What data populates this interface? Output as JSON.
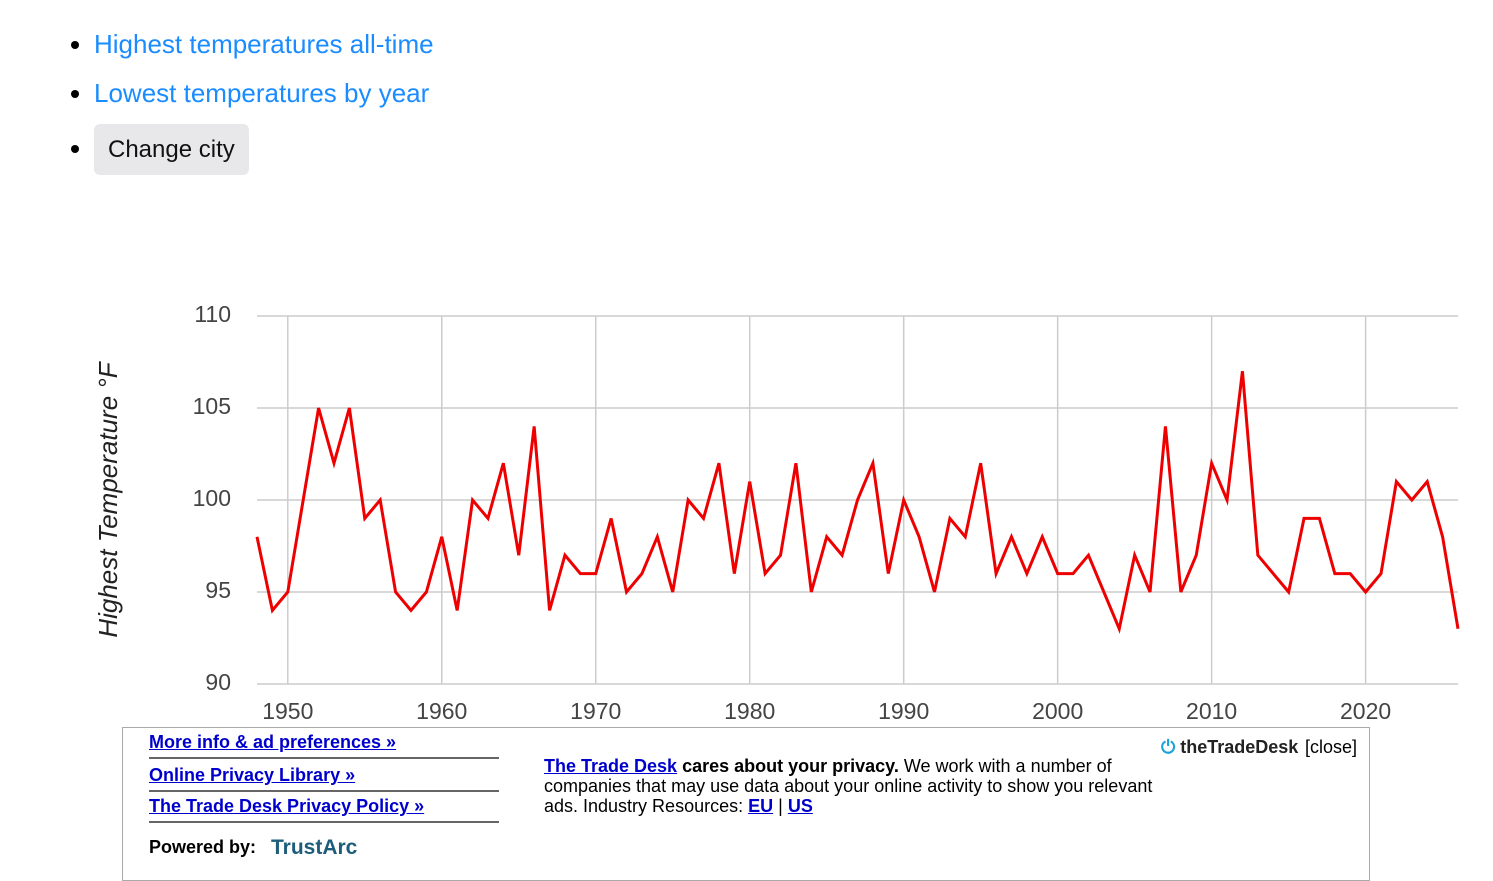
{
  "links": [
    "Highest temperatures all-time",
    "Lowest temperatures by year"
  ],
  "button": "Change city",
  "chart_data": {
    "type": "line",
    "y_label": "Highest Temperature °F",
    "x": [
      1948,
      1949,
      1950,
      1951,
      1952,
      1953,
      1954,
      1955,
      1956,
      1957,
      1958,
      1959,
      1960,
      1961,
      1962,
      1963,
      1964,
      1965,
      1966,
      1967,
      1968,
      1969,
      1970,
      1971,
      1972,
      1973,
      1974,
      1975,
      1976,
      1977,
      1978,
      1979,
      1980,
      1981,
      1982,
      1983,
      1984,
      1985,
      1986,
      1987,
      1988,
      1989,
      1990,
      1991,
      1992,
      1993,
      1994,
      1995,
      1996,
      1997,
      1998,
      1999,
      2000,
      2001,
      2002,
      2003,
      2004,
      2005,
      2006,
      2007,
      2008,
      2009,
      2010,
      2011,
      2012,
      2013,
      2014,
      2015,
      2016,
      2017,
      2018,
      2019,
      2020,
      2021,
      2022,
      2023,
      2024,
      2025,
      2026
    ],
    "series": [
      {
        "color": "#ee0000",
        "values": [
          98,
          94,
          95,
          100,
          105,
          102,
          105,
          99,
          100,
          95,
          94,
          95,
          98,
          94,
          100,
          99,
          102,
          97,
          104,
          94,
          97,
          96,
          96,
          99,
          95,
          96,
          98,
          95,
          100,
          99,
          102,
          96,
          101,
          96,
          97,
          102,
          95,
          98,
          97,
          100,
          102,
          96,
          100,
          98,
          95,
          99,
          98,
          102,
          96,
          98,
          96,
          98,
          96,
          96,
          97,
          95,
          93,
          97,
          95,
          104,
          95,
          97,
          102,
          100,
          107,
          97,
          96,
          95,
          99,
          99,
          96,
          96,
          95,
          96,
          101,
          100,
          101,
          98,
          93
        ]
      }
    ],
    "xlim": [
      1948,
      2026
    ],
    "xticks": [
      1950,
      1960,
      1970,
      1980,
      1990,
      2000,
      2010,
      2020
    ],
    "ylim": [
      90,
      110
    ],
    "yticks": [
      90,
      95,
      100,
      105,
      110
    ],
    "grid": true
  },
  "ad": {
    "links": [
      "More info & ad preferences »",
      "Online Privacy Library »",
      "The Trade Desk Privacy Policy »"
    ],
    "powered_by": "Powered by:",
    "trustarc": "TrustArc",
    "company": "The Trade Desk",
    "headline": "cares about your privacy.",
    "body": "We work with a number of companies that may use data about your online activity to show you relevant ads. Industry Resources:",
    "eu": "EU",
    "sep": "|",
    "us": "US",
    "brand": "theTradeDesk",
    "close": "[close]"
  }
}
